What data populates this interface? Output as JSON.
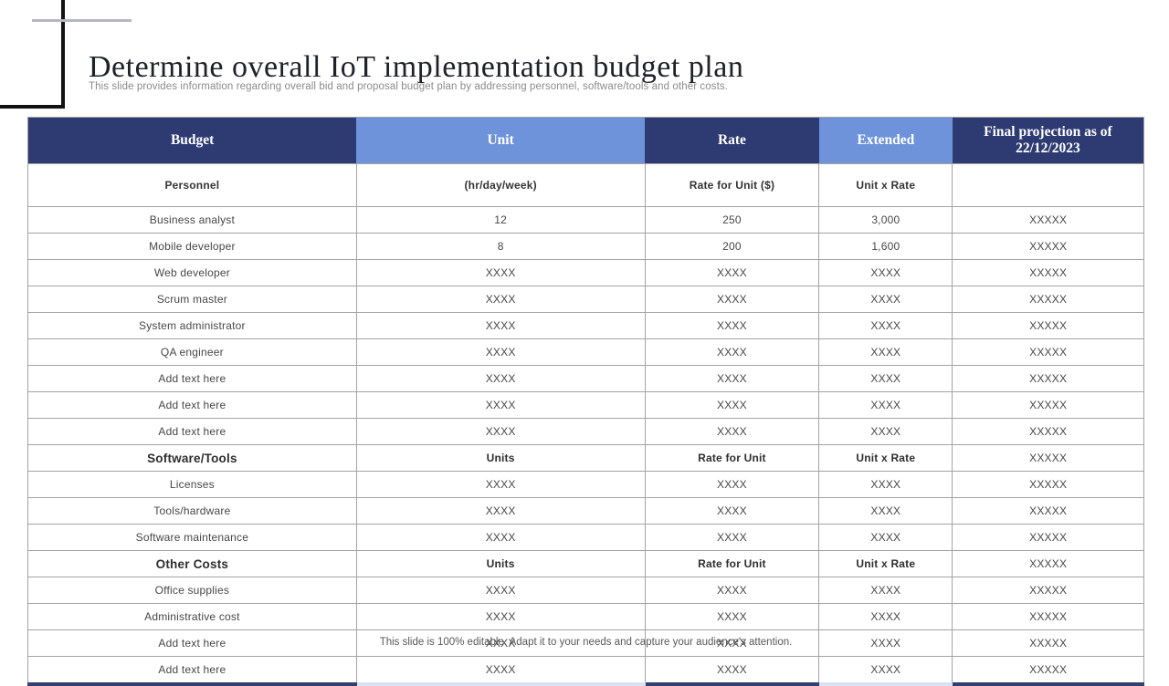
{
  "slide": {
    "title": "Determine overall IoT implementation budget plan",
    "subtitle": "This slide provides information regarding overall bid and proposal budget plan by addressing personnel, software/tools and other costs.",
    "footer_note": "This slide is 100% editable. Adapt it to your needs and capture your audience's attention."
  },
  "colors": {
    "header_dark": "#2d3b72",
    "header_light": "#6e93da",
    "border_gray": "#a3a3a3"
  },
  "table": {
    "header": [
      {
        "label": "Budget",
        "tone": "dark"
      },
      {
        "label": "Unit",
        "tone": "light"
      },
      {
        "label": "Rate",
        "tone": "dark"
      },
      {
        "label": "Extended",
        "tone": "light"
      },
      {
        "label": "Final projection as of 22/12/2023",
        "tone": "dark"
      }
    ],
    "rows": [
      {
        "style": "subheader",
        "cells": [
          "Personnel",
          "(hr/day/week)",
          "Rate for Unit ($)",
          "Unit x Rate",
          ""
        ]
      },
      {
        "style": "data",
        "cells": [
          "Business analyst",
          "12",
          "250",
          "3,000",
          "XXXXX"
        ]
      },
      {
        "style": "data",
        "cells": [
          "Mobile developer",
          "8",
          "200",
          "1,600",
          "XXXXX"
        ]
      },
      {
        "style": "data",
        "cells": [
          "Web developer",
          "XXXX",
          "XXXX",
          "XXXX",
          "XXXXX"
        ]
      },
      {
        "style": "data",
        "cells": [
          "Scrum master",
          "XXXX",
          "XXXX",
          "XXXX",
          "XXXXX"
        ]
      },
      {
        "style": "data",
        "cells": [
          "System administrator",
          "XXXX",
          "XXXX",
          "XXXX",
          "XXXXX"
        ]
      },
      {
        "style": "data",
        "cells": [
          "QA engineer",
          "XXXX",
          "XXXX",
          "XXXX",
          "XXXXX"
        ]
      },
      {
        "style": "data",
        "cells": [
          "Add text here",
          "XXXX",
          "XXXX",
          "XXXX",
          "XXXXX"
        ]
      },
      {
        "style": "data",
        "cells": [
          "Add text here",
          "XXXX",
          "XXXX",
          "XXXX",
          "XXXXX"
        ]
      },
      {
        "style": "data",
        "cells": [
          "Add text here",
          "XXXX",
          "XXXX",
          "XXXX",
          "XXXXX"
        ]
      },
      {
        "style": "section",
        "cells": [
          "Software/Tools",
          "Units",
          "Rate for Unit",
          "Unit x Rate",
          "XXXXX"
        ]
      },
      {
        "style": "data",
        "cells": [
          "Licenses",
          "XXXX",
          "XXXX",
          "XXXX",
          "XXXXX"
        ]
      },
      {
        "style": "data",
        "cells": [
          "Tools/hardware",
          "XXXX",
          "XXXX",
          "XXXX",
          "XXXXX"
        ]
      },
      {
        "style": "data",
        "cells": [
          "Software maintenance",
          "XXXX",
          "XXXX",
          "XXXX",
          "XXXXX"
        ]
      },
      {
        "style": "section",
        "cells": [
          "Other Costs",
          "Units",
          "Rate for Unit",
          "Unit x Rate",
          "XXXXX"
        ]
      },
      {
        "style": "data",
        "cells": [
          "Office supplies",
          "XXXX",
          "XXXX",
          "XXXX",
          "XXXXX"
        ]
      },
      {
        "style": "data",
        "cells": [
          "Administrative cost",
          "XXXX",
          "XXXX",
          "XXXX",
          "XXXXX"
        ]
      },
      {
        "style": "data",
        "cells": [
          "Add text here",
          "XXXX",
          "XXXX",
          "XXXX",
          "XXXXX"
        ]
      },
      {
        "style": "data",
        "cells": [
          "Add text here",
          "XXXX",
          "XXXX",
          "XXXX",
          "XXXXX"
        ]
      }
    ]
  }
}
